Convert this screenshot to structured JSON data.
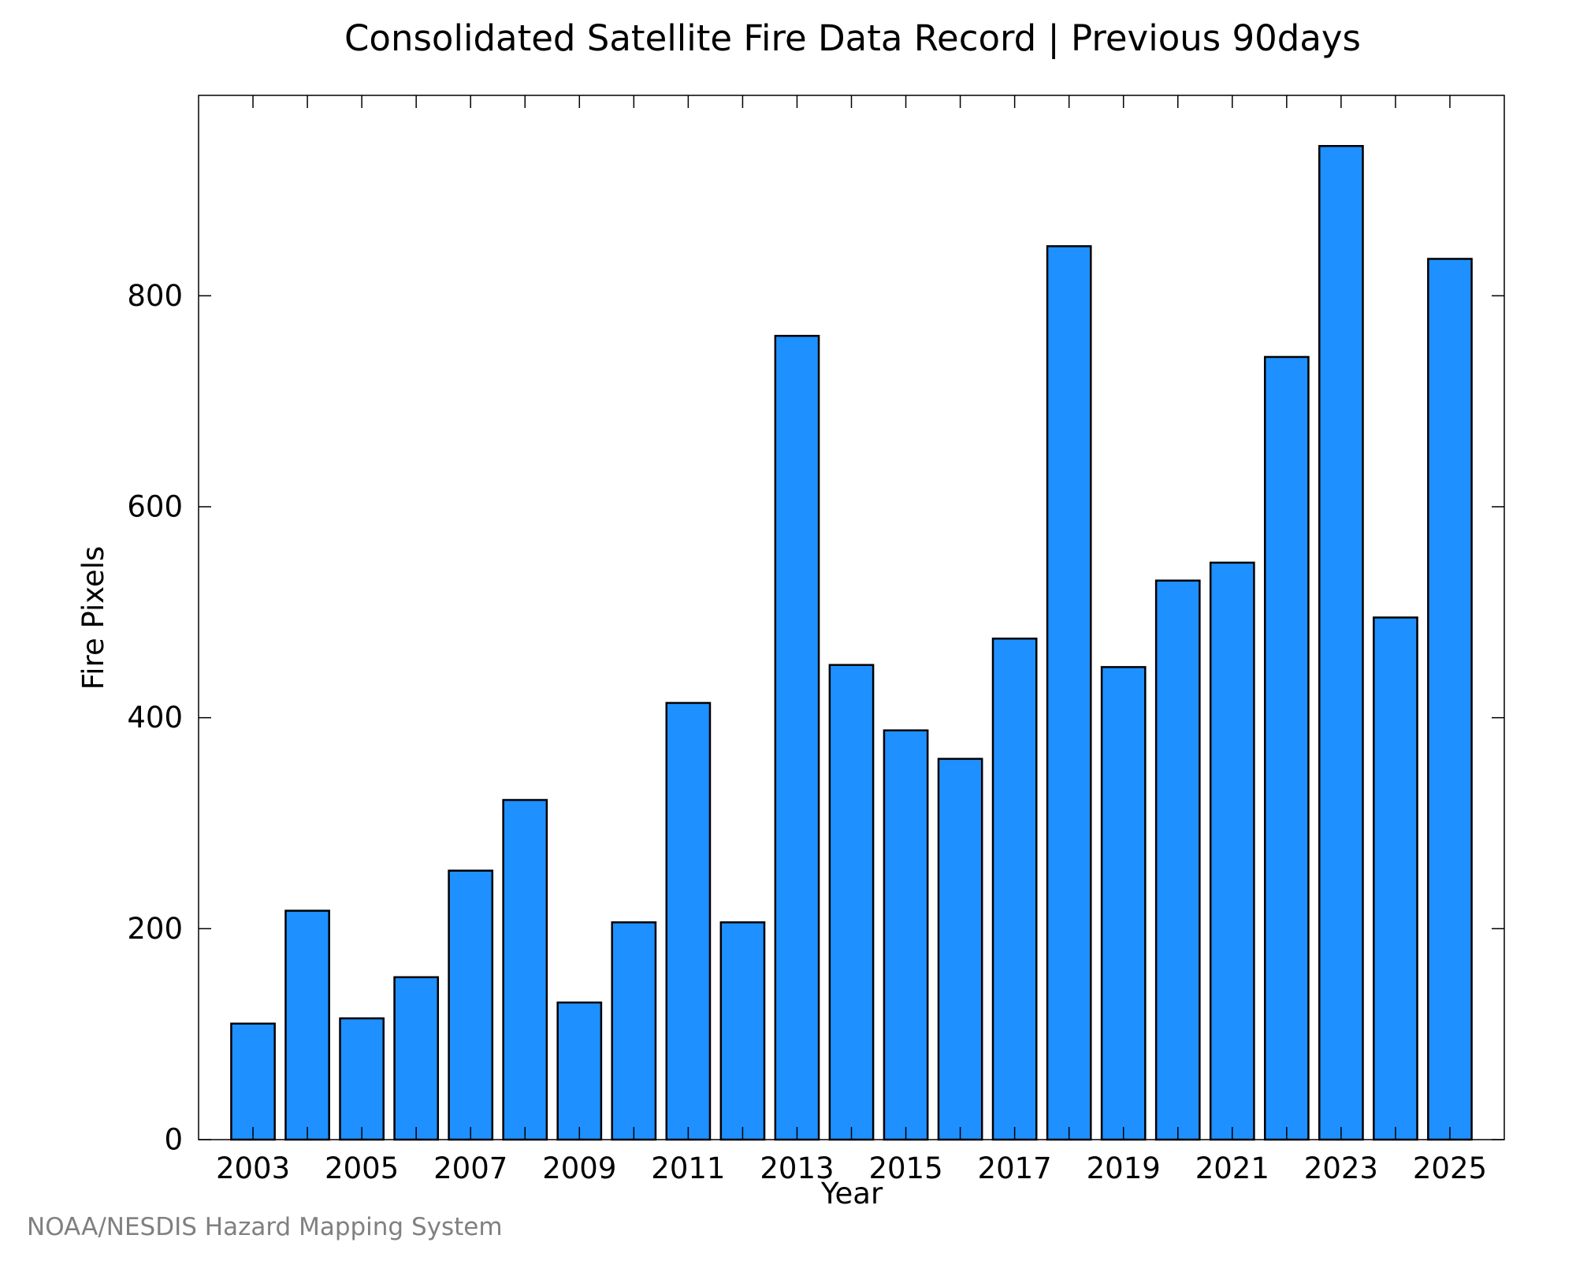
{
  "chart_data": {
    "type": "bar",
    "title": "Consolidated Satellite Fire Data Record | Previous 90days",
    "xlabel": "Year",
    "ylabel": "Fire Pixels",
    "categories": [
      "2003",
      "2004",
      "2005",
      "2006",
      "2007",
      "2008",
      "2009",
      "2010",
      "2011",
      "2012",
      "2013",
      "2014",
      "2015",
      "2016",
      "2017",
      "2018",
      "2019",
      "2020",
      "2021",
      "2022",
      "2023",
      "2024",
      "2025"
    ],
    "values": [
      110,
      217,
      115,
      154,
      255,
      322,
      130,
      206,
      414,
      206,
      762,
      450,
      388,
      361,
      475,
      847,
      448,
      530,
      547,
      742,
      942,
      495,
      835
    ],
    "x_tick_labels": [
      "2003",
      "2005",
      "2007",
      "2009",
      "2011",
      "2013",
      "2015",
      "2017",
      "2019",
      "2021",
      "2023",
      "2025"
    ],
    "y_ticks": [
      0,
      200,
      400,
      600,
      800
    ],
    "ylim": [
      0,
      990
    ],
    "grid": false,
    "legend": false,
    "bar_color": "#1E90FF",
    "bar_edge_color": "#000000"
  },
  "credit": "NOAA/NESDIS Hazard Mapping System"
}
